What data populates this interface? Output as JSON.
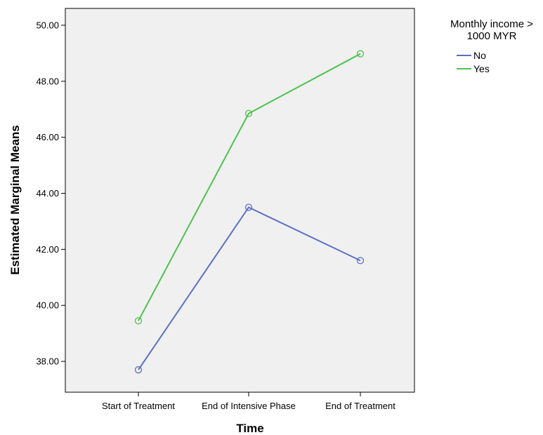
{
  "chart_data": {
    "type": "line",
    "title": "",
    "xlabel": "Time",
    "ylabel": "Estimated Marginal Means",
    "categories": [
      "Start of Treatment",
      "End of Intensive Phase",
      "End of Treatment"
    ],
    "ylim": [
      36.9,
      50.6
    ],
    "yticks": [
      "38.00",
      "40.00",
      "42.00",
      "44.00",
      "46.00",
      "48.00",
      "50.00"
    ],
    "legend": {
      "title_lines": [
        "Monthly income >",
        "1000 MYR"
      ],
      "placement": "right"
    },
    "series": [
      {
        "name": "No",
        "color": "#5b6fc4",
        "values": [
          37.7,
          43.5,
          41.6
        ]
      },
      {
        "name": "Yes",
        "color": "#4ec24e",
        "values": [
          39.45,
          46.85,
          48.98
        ]
      }
    ],
    "background": "#f0f0f0",
    "grid": false
  }
}
